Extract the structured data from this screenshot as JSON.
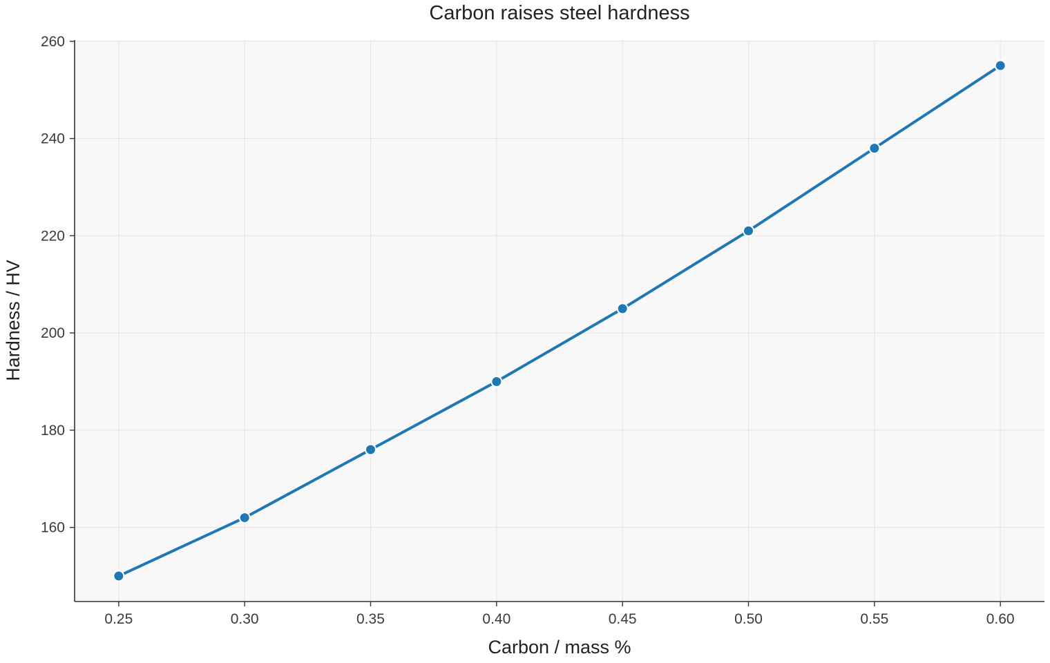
{
  "chart_data": {
    "type": "line",
    "title": "Carbon raises steel hardness",
    "xlabel": "Carbon / mass %",
    "ylabel": "Hardness / HV",
    "x": [
      0.25,
      0.3,
      0.35,
      0.4,
      0.45,
      0.5,
      0.55,
      0.6
    ],
    "x_tick_labels": [
      "0.25",
      "0.30",
      "0.35",
      "0.40",
      "0.45",
      "0.50",
      "0.55",
      "0.60"
    ],
    "y_ticks": [
      160,
      180,
      200,
      220,
      240,
      260
    ],
    "y_tick_labels": [
      "160",
      "180",
      "200",
      "220",
      "240",
      "260"
    ],
    "xlim": [
      0.2325,
      0.6175
    ],
    "ylim": [
      144.75,
      260.25
    ],
    "series": [
      {
        "values": [
          150,
          162,
          176,
          190,
          205,
          221,
          238,
          255
        ],
        "color": "#1f77b4",
        "marker": "circle"
      }
    ],
    "grid": true,
    "plot_background": "#f8f8f9",
    "grid_color": "#e6e6e6",
    "axis_color": "#333333"
  }
}
